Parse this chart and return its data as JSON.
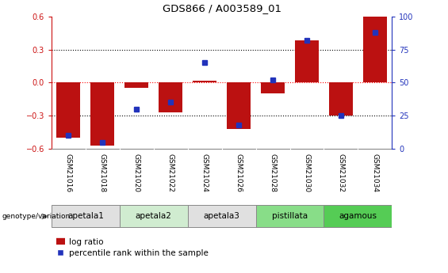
{
  "title": "GDS866 / A003589_01",
  "samples": [
    "GSM21016",
    "GSM21018",
    "GSM21020",
    "GSM21022",
    "GSM21024",
    "GSM21026",
    "GSM21028",
    "GSM21030",
    "GSM21032",
    "GSM21034"
  ],
  "log_ratio": [
    -0.5,
    -0.57,
    -0.05,
    -0.27,
    0.02,
    -0.42,
    -0.1,
    0.38,
    -0.3,
    0.6
  ],
  "percentile": [
    10,
    5,
    30,
    35,
    65,
    18,
    52,
    82,
    25,
    88
  ],
  "ylim_left": [
    -0.6,
    0.6
  ],
  "ylim_right": [
    0,
    100
  ],
  "yticks_left": [
    -0.6,
    -0.3,
    0,
    0.3,
    0.6
  ],
  "yticks_right": [
    0,
    25,
    50,
    75,
    100
  ],
  "hlines_dotted": [
    -0.3,
    0.3
  ],
  "hline_red": 0.0,
  "bar_color": "#bb1111",
  "dot_color": "#2233bb",
  "groups": [
    {
      "label": "apetala1",
      "start": 0,
      "end": 2,
      "color": "#e0e0e0"
    },
    {
      "label": "apetala2",
      "start": 2,
      "end": 4,
      "color": "#d0ecd0"
    },
    {
      "label": "apetala3",
      "start": 4,
      "end": 6,
      "color": "#e0e0e0"
    },
    {
      "label": "pistillata",
      "start": 6,
      "end": 8,
      "color": "#88dd88"
    },
    {
      "label": "agamous",
      "start": 8,
      "end": 10,
      "color": "#55cc55"
    }
  ],
  "sample_bg_color": "#c8c8c8",
  "legend_bar_label": "log ratio",
  "legend_dot_label": "percentile rank within the sample",
  "background_color": "#ffffff"
}
